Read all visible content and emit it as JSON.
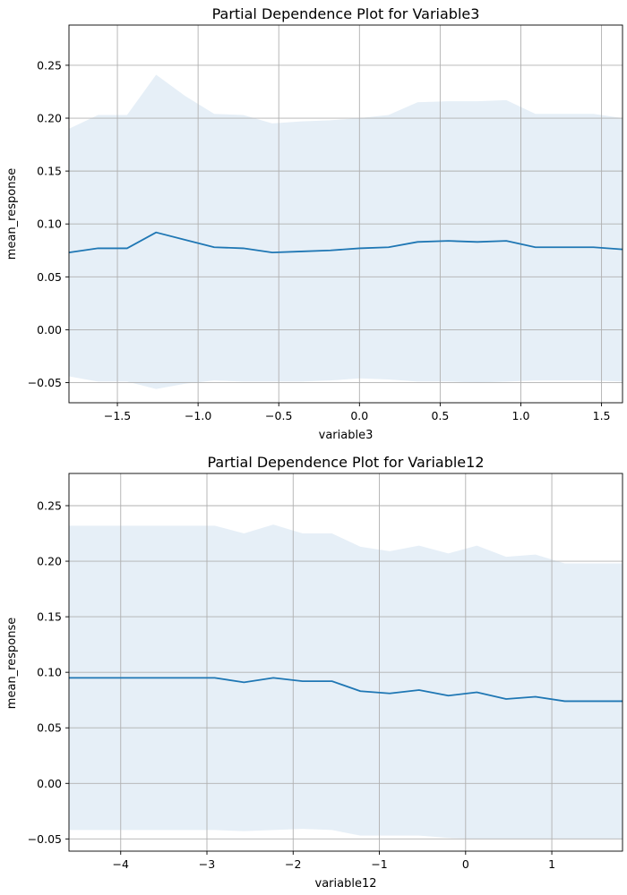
{
  "chart_data": [
    {
      "type": "line",
      "title": "Partial Dependence Plot for Variable3",
      "xlabel": "variable3",
      "ylabel": "mean_response",
      "xlim": [
        -1.8,
        1.63
      ],
      "ylim": [
        -0.069,
        0.288
      ],
      "xticks": [
        -1.5,
        -1.0,
        -0.5,
        0.0,
        0.5,
        1.0,
        1.5
      ],
      "xtick_labels": [
        "−1.5",
        "−1.0",
        "−0.5",
        "0.0",
        "0.5",
        "1.0",
        "1.5"
      ],
      "yticks": [
        -0.05,
        0.0,
        0.05,
        0.1,
        0.15,
        0.2,
        0.25
      ],
      "ytick_labels": [
        "−0.05",
        "0.00",
        "0.05",
        "0.10",
        "0.15",
        "0.20",
        "0.25"
      ],
      "grid": true,
      "line_color": "#1f77b4",
      "band_color": "#e6eff7",
      "x": [
        -1.8,
        -1.62,
        -1.44,
        -1.26,
        -1.08,
        -0.9,
        -0.72,
        -0.54,
        -0.36,
        -0.18,
        0.0,
        0.18,
        0.36,
        0.55,
        0.73,
        0.91,
        1.09,
        1.27,
        1.45,
        1.63
      ],
      "mean": [
        0.073,
        0.077,
        0.077,
        0.092,
        0.085,
        0.078,
        0.077,
        0.073,
        0.074,
        0.075,
        0.077,
        0.078,
        0.083,
        0.084,
        0.083,
        0.084,
        0.078,
        0.078,
        0.078,
        0.076
      ],
      "upper": [
        0.19,
        0.203,
        0.203,
        0.241,
        0.221,
        0.204,
        0.203,
        0.195,
        0.197,
        0.198,
        0.2,
        0.203,
        0.215,
        0.216,
        0.216,
        0.217,
        0.204,
        0.204,
        0.204,
        0.2
      ],
      "lower": [
        -0.044,
        -0.049,
        -0.049,
        -0.056,
        -0.051,
        -0.048,
        -0.049,
        -0.049,
        -0.049,
        -0.048,
        -0.046,
        -0.047,
        -0.049,
        -0.049,
        -0.05,
        -0.049,
        -0.048,
        -0.048,
        -0.048,
        -0.049
      ]
    },
    {
      "type": "line",
      "title": "Partial Dependence Plot for Variable12",
      "xlabel": "variable12",
      "ylabel": "mean_response",
      "xlim": [
        -4.6,
        1.82
      ],
      "ylim": [
        -0.061,
        0.279
      ],
      "xticks": [
        -4,
        -3,
        -2,
        -1,
        0,
        1
      ],
      "xtick_labels": [
        "−4",
        "−3",
        "−2",
        "−1",
        "0",
        "1"
      ],
      "yticks": [
        -0.05,
        0.0,
        0.05,
        0.1,
        0.15,
        0.2,
        0.25
      ],
      "ytick_labels": [
        "−0.05",
        "0.00",
        "0.05",
        "0.10",
        "0.15",
        "0.20",
        "0.25"
      ],
      "grid": true,
      "line_color": "#1f77b4",
      "band_color": "#e6eff7",
      "x": [
        -4.6,
        -4.26,
        -3.92,
        -3.59,
        -3.25,
        -2.91,
        -2.57,
        -2.23,
        -1.89,
        -1.55,
        -1.22,
        -0.88,
        -0.54,
        -0.2,
        0.13,
        0.47,
        0.81,
        1.15,
        1.48,
        1.82
      ],
      "mean": [
        0.095,
        0.095,
        0.095,
        0.095,
        0.095,
        0.095,
        0.091,
        0.095,
        0.092,
        0.092,
        0.083,
        0.081,
        0.084,
        0.079,
        0.082,
        0.076,
        0.078,
        0.074,
        0.074,
        0.074
      ],
      "upper": [
        0.232,
        0.232,
        0.232,
        0.232,
        0.232,
        0.232,
        0.225,
        0.233,
        0.225,
        0.225,
        0.213,
        0.209,
        0.214,
        0.207,
        0.214,
        0.204,
        0.206,
        0.198,
        0.198,
        0.198
      ],
      "lower": [
        -0.042,
        -0.042,
        -0.042,
        -0.042,
        -0.042,
        -0.042,
        -0.043,
        -0.042,
        -0.041,
        -0.042,
        -0.047,
        -0.047,
        -0.047,
        -0.049,
        -0.05,
        -0.05,
        -0.05,
        -0.05,
        -0.05,
        -0.05
      ]
    }
  ]
}
